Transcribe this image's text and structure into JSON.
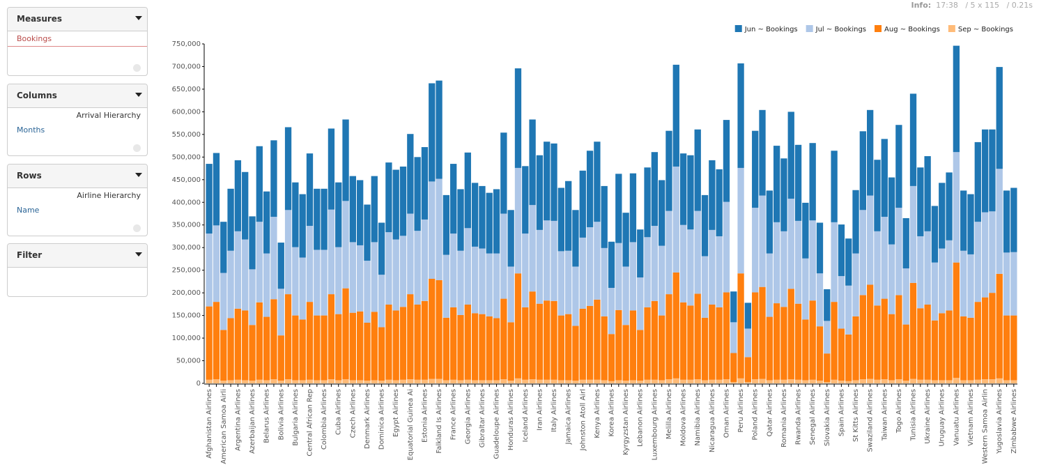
{
  "info": {
    "label": "Info:",
    "time": "17:38",
    "size": "/ 5 x 115",
    "duration": "/ 0.21s"
  },
  "sidebar": {
    "panels": [
      {
        "title": "Measures",
        "items": [
          "Bookings"
        ]
      },
      {
        "title": "Columns",
        "hierarchy": "Arrival Hierarchy",
        "items": [
          "Months"
        ]
      },
      {
        "title": "Rows",
        "hierarchy": "Airline Hierarchy",
        "items": [
          "Name"
        ]
      },
      {
        "title": "Filter"
      }
    ]
  },
  "chart_data": {
    "type": "stacked-bar",
    "legend": "top-right",
    "categories": [
      "Afghanistan Airlines",
      null,
      "American Samoa Airli",
      null,
      "Argentina Airlines",
      null,
      "Azerbaijan Airlines",
      null,
      "Belarus Airlines",
      null,
      "Bolivia Airlines",
      null,
      "Bulgaria Airlines",
      null,
      "Central African Rep",
      null,
      "Colombia Airlines",
      null,
      "Cuba Airlines",
      null,
      "Czech Airlines",
      null,
      "Denmark Airlines",
      null,
      "Dominica Airlines",
      null,
      "Egypt Airlines",
      null,
      "Equatorial Guinea Ai",
      null,
      "Estonia Airlines",
      null,
      "Falkland Is Airlines",
      null,
      "France Airlines",
      null,
      "Georgia Airlines",
      null,
      "Gibraltar Airlines",
      null,
      "Guadeloupe Airlines",
      null,
      "Honduras Airlines",
      null,
      "Iceland Airlines",
      null,
      "Iran Airlines",
      null,
      "Italy Airlines",
      null,
      "Jamaica Airlines",
      null,
      "Johnston Atoll Airl",
      null,
      "Kenya Airlines",
      null,
      "Korea Airlines",
      null,
      "Kyrgyzstan Airlines",
      null,
      "Lebanon Airlines",
      null,
      "Luxembourg Airlines",
      null,
      "Melilla Airlines",
      null,
      "Moldova Airlines",
      null,
      "Namibia Airlines",
      null,
      "Nicaragua Airlines",
      null,
      "Oman Airlines",
      null,
      "Peru Airlines",
      null,
      "Poland Airlines",
      null,
      "Qatar Airlines",
      null,
      "Romania Airlines",
      null,
      "Rwanda Airlines",
      null,
      "Senegal Airlines",
      null,
      "Slovakia Airlines",
      null,
      "Spain Airlines",
      null,
      "St Kitts Airlines",
      null,
      "Swaziland Airlines",
      null,
      "Taiwan Airlines",
      null,
      "Togo Airlines",
      null,
      "Tunisia Airlines",
      null,
      "Ukraine Airlines",
      null,
      "Uruguay Airlines",
      null,
      "Vanuatu Airlines",
      null,
      "Vietnam Airlines",
      null,
      "Western Samoa Airlin",
      null,
      "Yugoslavia Airlines",
      null,
      "Zimbabwe Airlines"
    ],
    "series": [
      {
        "name": "Jun ~ Bookings",
        "color": "#1f77b4",
        "values": [
          154000,
          160000,
          113000,
          137000,
          157000,
          149000,
          117000,
          167000,
          137000,
          169000,
          102000,
          183000,
          143000,
          140000,
          160000,
          135000,
          135000,
          179000,
          143000,
          180000,
          146000,
          144000,
          124000,
          146000,
          115000,
          154000,
          154000,
          153000,
          176000,
          163000,
          160000,
          217000,
          217000,
          132000,
          154000,
          136000,
          167000,
          141000,
          138000,
          134000,
          142000,
          179000,
          125000,
          220000,
          149000,
          189000,
          165000,
          174000,
          171000,
          140000,
          154000,
          125000,
          148000,
          169000,
          177000,
          137000,
          102000,
          153000,
          119000,
          152000,
          106000,
          154000,
          163000,
          145000,
          177000,
          225000,
          158000,
          164000,
          180000,
          135000,
          154000,
          148000,
          181000,
          68000,
          231000,
          57000,
          170000,
          189000,
          139000,
          169000,
          161000,
          192000,
          168000,
          123000,
          171000,
          112000,
          70000,
          158000,
          114000,
          104000,
          140000,
          174000,
          189000,
          158000,
          172000,
          148000,
          183000,
          111000,
          204000,
          152000,
          166000,
          125000,
          145000,
          150000,
          235000,
          133000,
          133000,
          176000,
          183000,
          181000,
          225000,
          137000,
          142000
        ]
      },
      {
        "name": "Jul ~ Bookings",
        "color": "#aec7e8",
        "values": [
          161000,
          169000,
          126000,
          149000,
          171000,
          157000,
          123000,
          178000,
          140000,
          182000,
          103000,
          186000,
          151000,
          137000,
          168000,
          145000,
          145000,
          187000,
          148000,
          193000,
          156000,
          146000,
          137000,
          154000,
          116000,
          160000,
          157000,
          157000,
          178000,
          163000,
          180000,
          215000,
          224000,
          139000,
          163000,
          142000,
          169000,
          147000,
          145000,
          139000,
          143000,
          188000,
          123000,
          233000,
          163000,
          191000,
          163000,
          177000,
          177000,
          142000,
          140000,
          131000,
          157000,
          174000,
          172000,
          151000,
          102000,
          148000,
          129000,
          151000,
          116000,
          155000,
          166000,
          154000,
          184000,
          234000,
          171000,
          168000,
          183000,
          136000,
          165000,
          157000,
          200000,
          68000,
          233000,
          63000,
          187000,
          202000,
          140000,
          179000,
          167000,
          199000,
          183000,
          135000,
          177000,
          117000,
          72000,
          176000,
          116000,
          108000,
          139000,
          188000,
          197000,
          164000,
          181000,
          154000,
          193000,
          124000,
          214000,
          159000,
          162000,
          128000,
          143000,
          155000,
          244000,
          145000,
          140000,
          177000,
          188000,
          180000,
          232000,
          139000,
          140000
        ]
      },
      {
        "name": "Aug ~ Bookings",
        "color": "#ff7f0e",
        "values": [
          162000,
          171000,
          112000,
          137000,
          157000,
          154000,
          123000,
          171000,
          140000,
          177000,
          100000,
          188000,
          143000,
          134000,
          172000,
          143000,
          143000,
          188000,
          146000,
          201000,
          149000,
          152000,
          128000,
          151000,
          118000,
          166000,
          154000,
          161000,
          188000,
          166000,
          174000,
          221000,
          218000,
          138000,
          160000,
          144000,
          166000,
          148000,
          146000,
          141000,
          137000,
          178000,
          129000,
          232000,
          160000,
          194000,
          168000,
          175000,
          174000,
          143000,
          146000,
          121000,
          157000,
          163000,
          177000,
          141000,
          104000,
          155000,
          123000,
          154000,
          112000,
          160000,
          174000,
          143000,
          188000,
          234000,
          171000,
          164000,
          189000,
          138000,
          166000,
          160000,
          192000,
          64000,
          232000,
          55000,
          192000,
          203000,
          140000,
          169000,
          161000,
          200000,
          168000,
          134000,
          175000,
          120000,
          63000,
          172000,
          115000,
          103000,
          141000,
          186000,
          208000,
          164000,
          178000,
          146000,
          186000,
          124000,
          212000,
          158000,
          166000,
          132000,
          148000,
          154000,
          255000,
          141000,
          138000,
          172000,
          181000,
          191000,
          231000,
          143000,
          143000
        ]
      },
      {
        "name": "Sep ~ Bookings",
        "color": "#ffbb78",
        "values": [
          8000,
          9000,
          6000,
          7000,
          8000,
          7000,
          6000,
          8000,
          7000,
          9000,
          6000,
          9000,
          7000,
          7000,
          8000,
          7000,
          7000,
          9000,
          7000,
          9000,
          7000,
          7000,
          6000,
          7000,
          6000,
          8000,
          7000,
          8000,
          9000,
          8000,
          8000,
          10000,
          10000,
          7000,
          8000,
          7000,
          8000,
          7000,
          7000,
          7000,
          7000,
          9000,
          6000,
          11000,
          8000,
          9000,
          8000,
          8000,
          8000,
          7000,
          7000,
          6000,
          8000,
          8000,
          8000,
          7000,
          5000,
          7000,
          6000,
          7000,
          6000,
          8000,
          8000,
          7000,
          9000,
          11000,
          8000,
          8000,
          9000,
          7000,
          8000,
          8000,
          9000,
          3000,
          11000,
          3000,
          9000,
          10000,
          7000,
          8000,
          8000,
          9000,
          8000,
          7000,
          8000,
          6000,
          3000,
          8000,
          6000,
          5000,
          7000,
          9000,
          10000,
          8000,
          9000,
          7000,
          9000,
          6000,
          10000,
          8000,
          8000,
          7000,
          7000,
          7000,
          12000,
          7000,
          7000,
          8000,
          9000,
          9000,
          11000,
          7000,
          7000
        ]
      }
    ],
    "ylim": [
      0,
      750000
    ],
    "yticks": [
      0,
      {
        "value": 50000,
        "label": "50,000"
      },
      {
        "value": 100000,
        "label": "100,000"
      },
      {
        "value": 150000,
        "label": "150,000"
      },
      {
        "value": 200000,
        "label": "200,000"
      },
      {
        "value": 250000,
        "label": "250,000"
      },
      {
        "value": 300000,
        "label": "300,000"
      },
      {
        "value": 350000,
        "label": "350,000"
      },
      {
        "value": 400000,
        "label": "400,000"
      },
      {
        "value": 450000,
        "label": "450,000"
      },
      {
        "value": 500000,
        "label": "500,000"
      },
      {
        "value": 550000,
        "label": "550,000"
      },
      {
        "value": 600000,
        "label": "600,000"
      },
      {
        "value": 650000,
        "label": "650,000"
      },
      {
        "value": 700000,
        "label": "700,000"
      },
      {
        "value": 750000,
        "label": "750,000"
      }
    ],
    "grid": false
  }
}
